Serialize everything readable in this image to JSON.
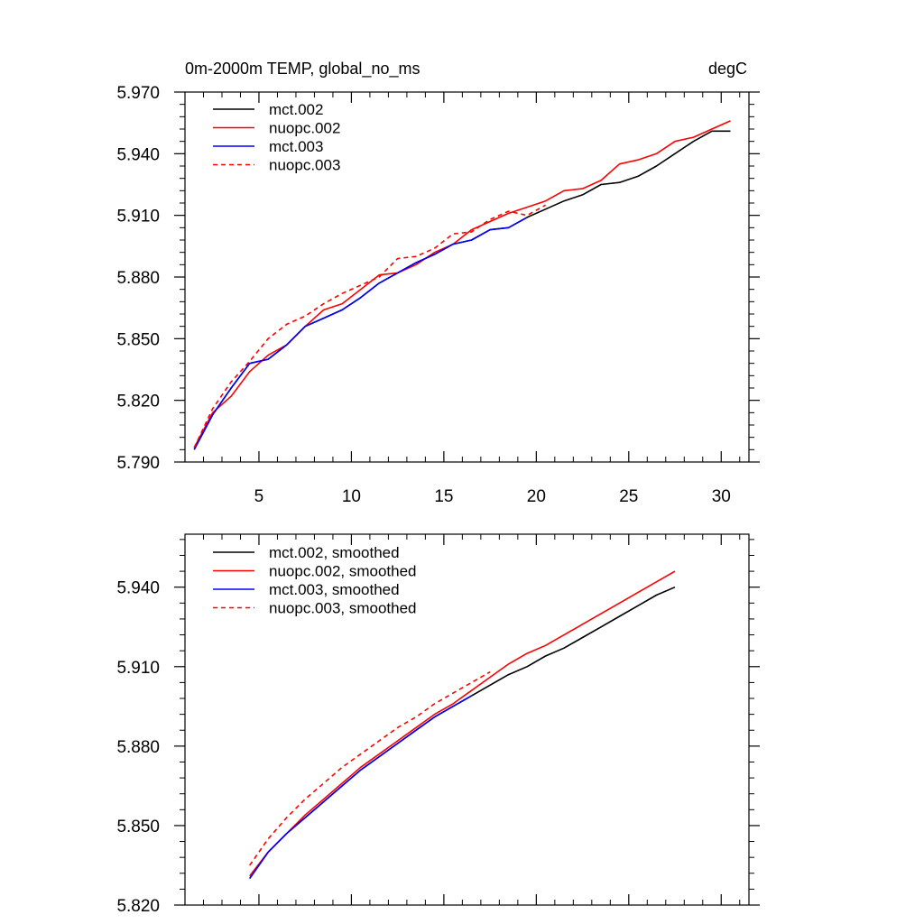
{
  "colors": {
    "mct002": "#000000",
    "nuopc002": "#ff0000",
    "mct003": "#0000ff",
    "nuopc003": "#ff0000",
    "axis": "#000000"
  },
  "chart_data": [
    {
      "type": "line",
      "title_left": "0m-2000m TEMP, global_no_ms",
      "title_right": "degC",
      "xlabel": "",
      "ylabel": "",
      "xlim": [
        1,
        31.5
      ],
      "ylim": [
        5.79,
        5.97
      ],
      "xticks": [
        5,
        10,
        15,
        20,
        25,
        30
      ],
      "xtick_labels": [
        "5",
        "10",
        "15",
        "20",
        "25",
        "30"
      ],
      "yticks": [
        5.79,
        5.82,
        5.85,
        5.88,
        5.91,
        5.94,
        5.97
      ],
      "ytick_labels": [
        "5.790",
        "5.820",
        "5.850",
        "5.880",
        "5.910",
        "5.940",
        "5.970"
      ],
      "grid": false,
      "legend_position": "top-left",
      "series": [
        {
          "name": "mct.002",
          "color_key": "mct002",
          "dash": "solid",
          "x": [
            1.5,
            2.5,
            3.5,
            4.5,
            5.5,
            6.5,
            7.5,
            8.5,
            9.5,
            10.5,
            11.5,
            12.5,
            13.5,
            14.5,
            15.5,
            16.5,
            17.5,
            18.5,
            19.5,
            20.5,
            21.5,
            22.5,
            23.5,
            24.5,
            25.5,
            26.5,
            27.5,
            28.5,
            29.5,
            30.5
          ],
          "values": [
            5.796,
            5.813,
            5.826,
            5.838,
            5.84,
            5.847,
            5.856,
            5.86,
            5.864,
            5.87,
            5.877,
            5.882,
            5.887,
            5.891,
            5.896,
            5.898,
            5.903,
            5.904,
            5.909,
            5.913,
            5.917,
            5.92,
            5.925,
            5.926,
            5.929,
            5.934,
            5.94,
            5.946,
            5.951,
            5.951
          ]
        },
        {
          "name": "nuopc.002",
          "color_key": "nuopc002",
          "dash": "solid",
          "x": [
            1.5,
            2.5,
            3.5,
            4.5,
            5.5,
            6.5,
            7.5,
            8.5,
            9.5,
            10.5,
            11.5,
            12.5,
            13.5,
            14.5,
            15.5,
            16.5,
            17.5,
            18.5,
            19.5,
            20.5,
            21.5,
            22.5,
            23.5,
            24.5,
            25.5,
            26.5,
            27.5,
            28.5,
            29.5,
            30.5
          ],
          "values": [
            5.797,
            5.814,
            5.822,
            5.834,
            5.842,
            5.847,
            5.856,
            5.864,
            5.867,
            5.874,
            5.881,
            5.882,
            5.886,
            5.892,
            5.896,
            5.903,
            5.907,
            5.911,
            5.914,
            5.917,
            5.922,
            5.923,
            5.927,
            5.935,
            5.937,
            5.94,
            5.946,
            5.948,
            5.952,
            5.956
          ]
        },
        {
          "name": "mct.003",
          "color_key": "mct003",
          "dash": "solid",
          "x": [
            1.5,
            2.5,
            3.5,
            4.5,
            5.5,
            6.5,
            7.5,
            8.5,
            9.5,
            10.5,
            11.5,
            12.5,
            13.5,
            14.5,
            15.5,
            16.5,
            17.5,
            18.5,
            19.5
          ],
          "values": [
            5.796,
            5.813,
            5.826,
            5.838,
            5.84,
            5.847,
            5.856,
            5.86,
            5.864,
            5.87,
            5.877,
            5.882,
            5.887,
            5.891,
            5.896,
            5.898,
            5.903,
            5.904,
            5.909
          ]
        },
        {
          "name": "nuopc.003",
          "color_key": "nuopc003",
          "dash": "dashed",
          "x": [
            1.5,
            2.5,
            3.5,
            4.5,
            5.5,
            6.5,
            7.5,
            8.5,
            9.5,
            10.5,
            11.5,
            12.5,
            13.5,
            14.5,
            15.5,
            16.5,
            17.5,
            18.5,
            19.5,
            20.5
          ],
          "values": [
            5.797,
            5.816,
            5.829,
            5.839,
            5.85,
            5.857,
            5.861,
            5.867,
            5.872,
            5.876,
            5.88,
            5.889,
            5.89,
            5.894,
            5.901,
            5.902,
            5.908,
            5.912,
            5.91,
            5.915
          ]
        }
      ]
    },
    {
      "type": "line",
      "title_left": "",
      "title_right": "",
      "xlabel": "",
      "ylabel": "",
      "xlim": [
        1,
        31.5
      ],
      "ylim": [
        5.82,
        5.96
      ],
      "xticks": [
        5,
        10,
        15,
        20,
        25,
        30
      ],
      "xtick_labels": [],
      "yticks": [
        5.82,
        5.85,
        5.88,
        5.91,
        5.94
      ],
      "ytick_labels": [
        "5.820",
        "5.850",
        "5.880",
        "5.910",
        "5.940"
      ],
      "grid": false,
      "legend_position": "top-left",
      "series": [
        {
          "name": "mct.002, smoothed",
          "color_key": "mct002",
          "dash": "solid",
          "x": [
            4.5,
            5.5,
            6.5,
            7.5,
            8.5,
            9.5,
            10.5,
            11.5,
            12.5,
            13.5,
            14.5,
            15.5,
            16.5,
            17.5,
            18.5,
            19.5,
            20.5,
            21.5,
            22.5,
            23.5,
            24.5,
            25.5,
            26.5,
            27.5
          ],
          "values": [
            5.83,
            5.84,
            5.847,
            5.853,
            5.859,
            5.865,
            5.871,
            5.876,
            5.881,
            5.886,
            5.891,
            5.895,
            5.899,
            5.903,
            5.907,
            5.91,
            5.914,
            5.917,
            5.921,
            5.925,
            5.929,
            5.933,
            5.937,
            5.94
          ]
        },
        {
          "name": "nuopc.002, smoothed",
          "color_key": "nuopc002",
          "dash": "solid",
          "x": [
            4.5,
            5.5,
            6.5,
            7.5,
            8.5,
            9.5,
            10.5,
            11.5,
            12.5,
            13.5,
            14.5,
            15.5,
            16.5,
            17.5,
            18.5,
            19.5,
            20.5,
            21.5,
            22.5,
            23.5,
            24.5,
            25.5,
            26.5,
            27.5
          ],
          "values": [
            5.831,
            5.84,
            5.847,
            5.854,
            5.86,
            5.866,
            5.872,
            5.877,
            5.882,
            5.887,
            5.892,
            5.896,
            5.901,
            5.906,
            5.911,
            5.915,
            5.918,
            5.922,
            5.926,
            5.93,
            5.934,
            5.938,
            5.942,
            5.946
          ]
        },
        {
          "name": "mct.003, smoothed",
          "color_key": "mct003",
          "dash": "solid",
          "x": [
            4.5,
            5.5,
            6.5,
            7.5,
            8.5,
            9.5,
            10.5,
            11.5,
            12.5,
            13.5,
            14.5,
            15.5,
            16.5
          ],
          "values": [
            5.83,
            5.84,
            5.847,
            5.853,
            5.859,
            5.865,
            5.871,
            5.876,
            5.881,
            5.886,
            5.891,
            5.895,
            5.899
          ]
        },
        {
          "name": "nuopc.003, smoothed",
          "color_key": "nuopc003",
          "dash": "dashed",
          "x": [
            4.5,
            5.5,
            6.5,
            7.5,
            8.5,
            9.5,
            10.5,
            11.5,
            12.5,
            13.5,
            14.5,
            15.5,
            16.5,
            17.5
          ],
          "values": [
            5.835,
            5.845,
            5.853,
            5.86,
            5.866,
            5.872,
            5.877,
            5.882,
            5.887,
            5.891,
            5.896,
            5.9,
            5.904,
            5.908
          ]
        }
      ]
    }
  ]
}
